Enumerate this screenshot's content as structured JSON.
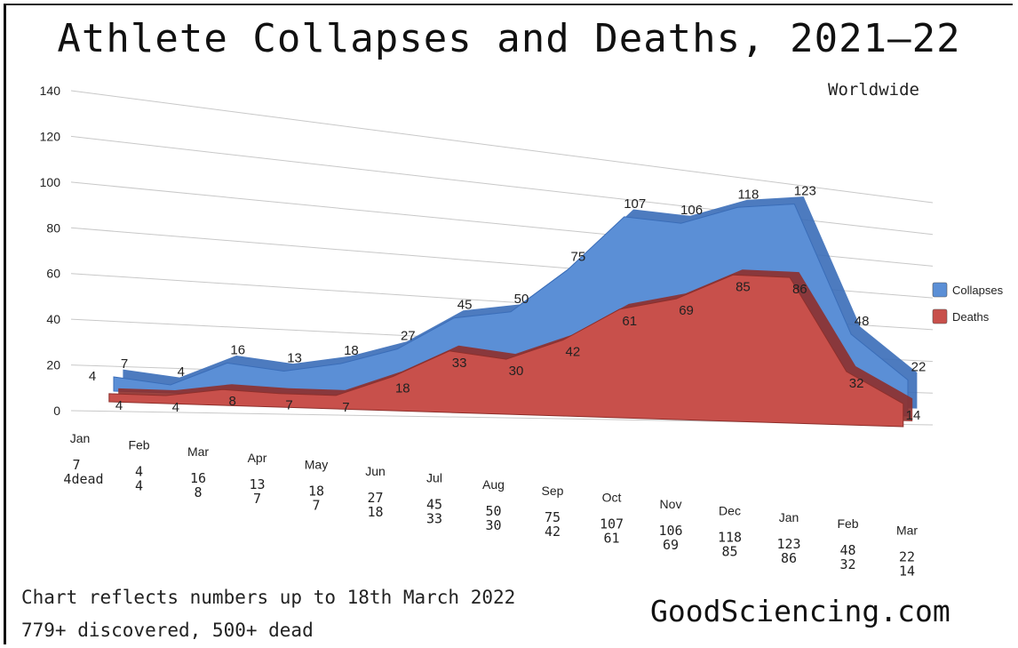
{
  "chart_data": {
    "type": "area",
    "title": "Athlete Collapses and Deaths, 2021—22",
    "subtitle": "Worldwide",
    "categories": [
      "Jan",
      "Feb",
      "Mar",
      "Apr",
      "May",
      "Jun",
      "Jul",
      "Aug",
      "Sep",
      "Oct",
      "Nov",
      "Dec",
      "Jan",
      "Feb",
      "Mar"
    ],
    "series": [
      {
        "name": "Collapses",
        "values": [
          7,
          4,
          16,
          13,
          18,
          27,
          45,
          50,
          75,
          107,
          106,
          118,
          123,
          48,
          22
        ],
        "color": "#5b8fd6"
      },
      {
        "name": "Deaths",
        "values": [
          4,
          4,
          8,
          7,
          7,
          18,
          33,
          30,
          42,
          61,
          69,
          85,
          86,
          32,
          14
        ],
        "color": "#c8504b"
      }
    ],
    "data_labels_collapses": [
      "7",
      "4",
      "16",
      "13",
      "18",
      "27",
      "45",
      "50",
      "75",
      "107",
      "106",
      "118",
      "123",
      "48",
      "22"
    ],
    "data_labels_deaths": [
      "4",
      "4",
      "8",
      "7",
      "7",
      "18",
      "33",
      "30",
      "42",
      "61",
      "69",
      "85",
      "86",
      "32",
      "14"
    ],
    "extra_label": "4",
    "table_first": [
      "7",
      "4dead"
    ],
    "y_ticks": [
      "0",
      "20",
      "40",
      "60",
      "80",
      "100",
      "120",
      "140"
    ],
    "ylim": [
      0,
      140
    ],
    "legend": [
      "Collapses",
      "Deaths"
    ],
    "legend_position": "right",
    "grid": true
  },
  "footer": {
    "note_line1": "Chart reflects numbers up to 18th March 2022",
    "note_line2": "779+ discovered, 500+ dead",
    "site": "GoodSciencing.com"
  },
  "colors": {
    "collapses": "#5b8fd6",
    "deaths": "#c8504b",
    "collapses_edge": "#3a6db8",
    "deaths_edge": "#8e2f2b"
  }
}
